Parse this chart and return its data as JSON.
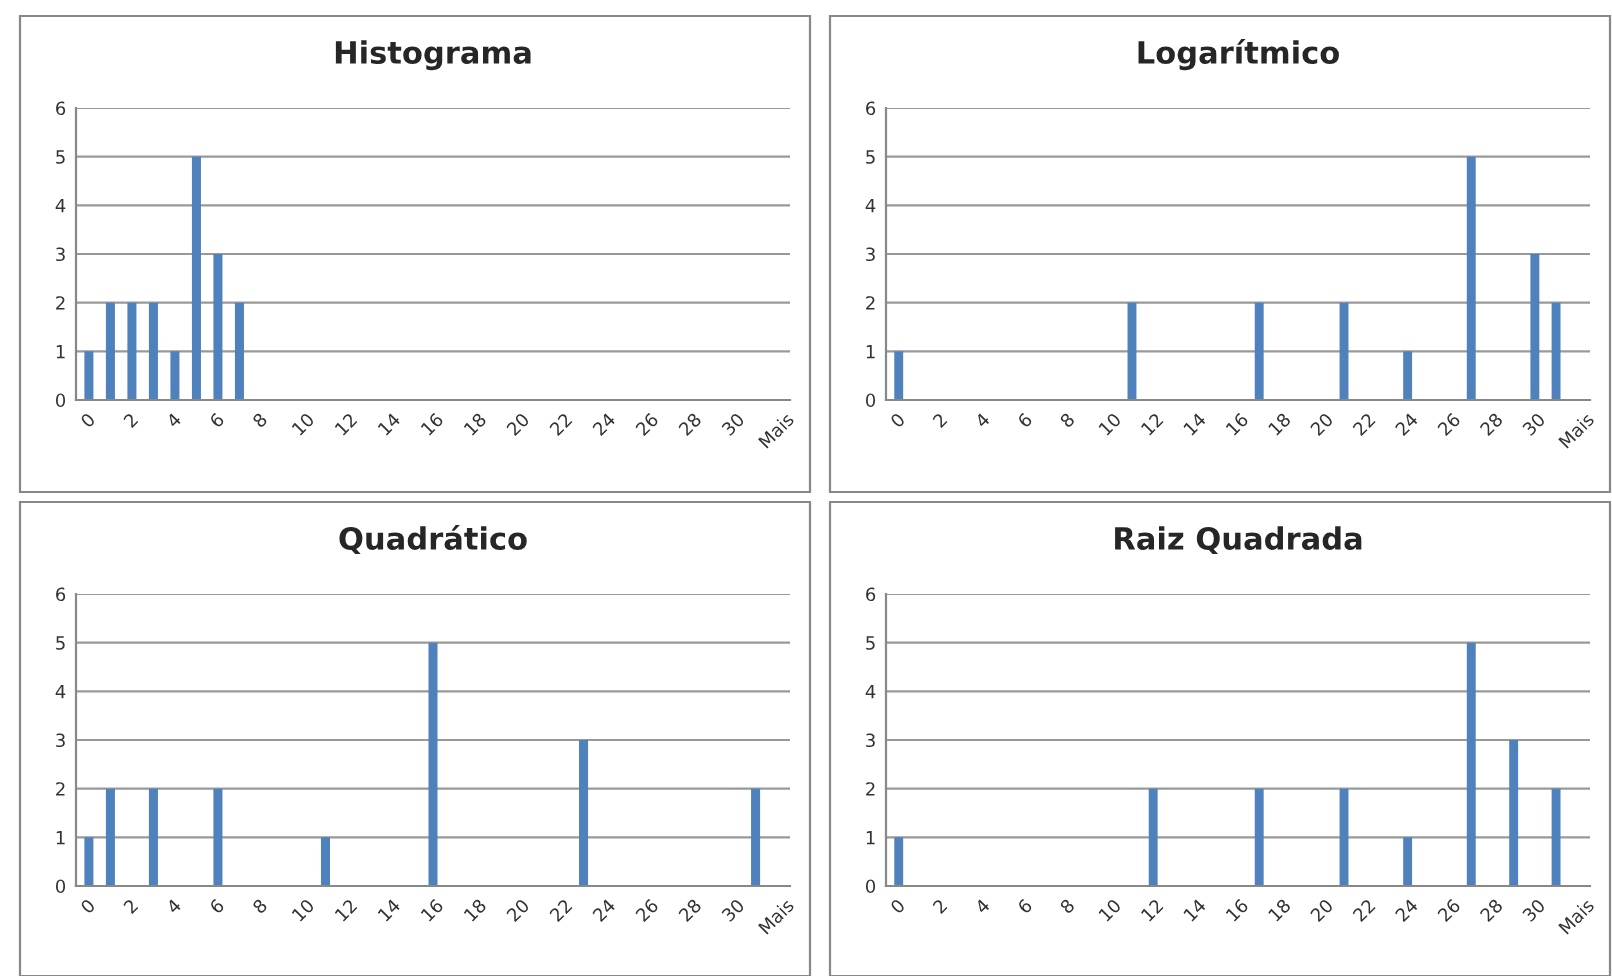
{
  "chart_data": [
    {
      "type": "bar",
      "title": "Histograma",
      "categories": [
        "0",
        null,
        "2",
        null,
        "4",
        null,
        "6",
        null,
        "8",
        null,
        "10",
        null,
        "12",
        null,
        "14",
        null,
        "16",
        null,
        "18",
        null,
        "20",
        null,
        "22",
        null,
        "24",
        null,
        "26",
        null,
        "28",
        null,
        "30",
        null,
        "Mais"
      ],
      "values": [
        1,
        2,
        2,
        2,
        1,
        5,
        3,
        2,
        0,
        0,
        0,
        0,
        0,
        0,
        0,
        0,
        0,
        0,
        0,
        0,
        0,
        0,
        0,
        0,
        0,
        0,
        0,
        0,
        0,
        0,
        0,
        0,
        0
      ],
      "color": "#4f81bd",
      "ylim": [
        0,
        6
      ],
      "yticks": [
        0,
        1,
        2,
        3,
        4,
        5,
        6
      ],
      "grid": "y",
      "legend": false
    },
    {
      "type": "bar",
      "title": "Logarítmico",
      "categories": [
        "0",
        null,
        "2",
        null,
        "4",
        null,
        "6",
        null,
        "8",
        null,
        "10",
        null,
        "12",
        null,
        "14",
        null,
        "16",
        null,
        "18",
        null,
        "20",
        null,
        "22",
        null,
        "24",
        null,
        "26",
        null,
        "28",
        null,
        "30",
        null,
        "Mais"
      ],
      "values": [
        1,
        0,
        0,
        0,
        0,
        0,
        0,
        0,
        0,
        0,
        0,
        2,
        0,
        0,
        0,
        0,
        0,
        2,
        0,
        0,
        0,
        2,
        0,
        0,
        1,
        0,
        0,
        5,
        0,
        0,
        3,
        2,
        0
      ],
      "color": "#4f81bd",
      "ylim": [
        0,
        6
      ],
      "yticks": [
        0,
        1,
        2,
        3,
        4,
        5,
        6
      ],
      "grid": "y",
      "legend": false
    },
    {
      "type": "bar",
      "title": "Quadrático",
      "categories": [
        "0",
        null,
        "2",
        null,
        "4",
        null,
        "6",
        null,
        "8",
        null,
        "10",
        null,
        "12",
        null,
        "14",
        null,
        "16",
        null,
        "18",
        null,
        "20",
        null,
        "22",
        null,
        "24",
        null,
        "26",
        null,
        "28",
        null,
        "30",
        null,
        "Mais"
      ],
      "values": [
        1,
        2,
        0,
        2,
        0,
        0,
        2,
        0,
        0,
        0,
        0,
        1,
        0,
        0,
        0,
        0,
        5,
        0,
        0,
        0,
        0,
        0,
        0,
        3,
        0,
        0,
        0,
        0,
        0,
        0,
        0,
        2,
        0
      ],
      "color": "#4f81bd",
      "ylim": [
        0,
        6
      ],
      "yticks": [
        0,
        1,
        2,
        3,
        4,
        5,
        6
      ],
      "grid": "y",
      "legend": false
    },
    {
      "type": "bar",
      "title": "Raiz Quadrada",
      "categories": [
        "0",
        null,
        "2",
        null,
        "4",
        null,
        "6",
        null,
        "8",
        null,
        "10",
        null,
        "12",
        null,
        "14",
        null,
        "16",
        null,
        "18",
        null,
        "20",
        null,
        "22",
        null,
        "24",
        null,
        "26",
        null,
        "28",
        null,
        "30",
        null,
        "Mais"
      ],
      "values": [
        1,
        0,
        0,
        0,
        0,
        0,
        0,
        0,
        0,
        0,
        0,
        0,
        2,
        0,
        0,
        0,
        0,
        2,
        0,
        0,
        0,
        2,
        0,
        0,
        1,
        0,
        0,
        5,
        0,
        3,
        0,
        2,
        0
      ],
      "color": "#4f81bd",
      "ylim": [
        0,
        6
      ],
      "yticks": [
        0,
        1,
        2,
        3,
        4,
        5,
        6
      ],
      "grid": "y",
      "legend": false
    }
  ]
}
